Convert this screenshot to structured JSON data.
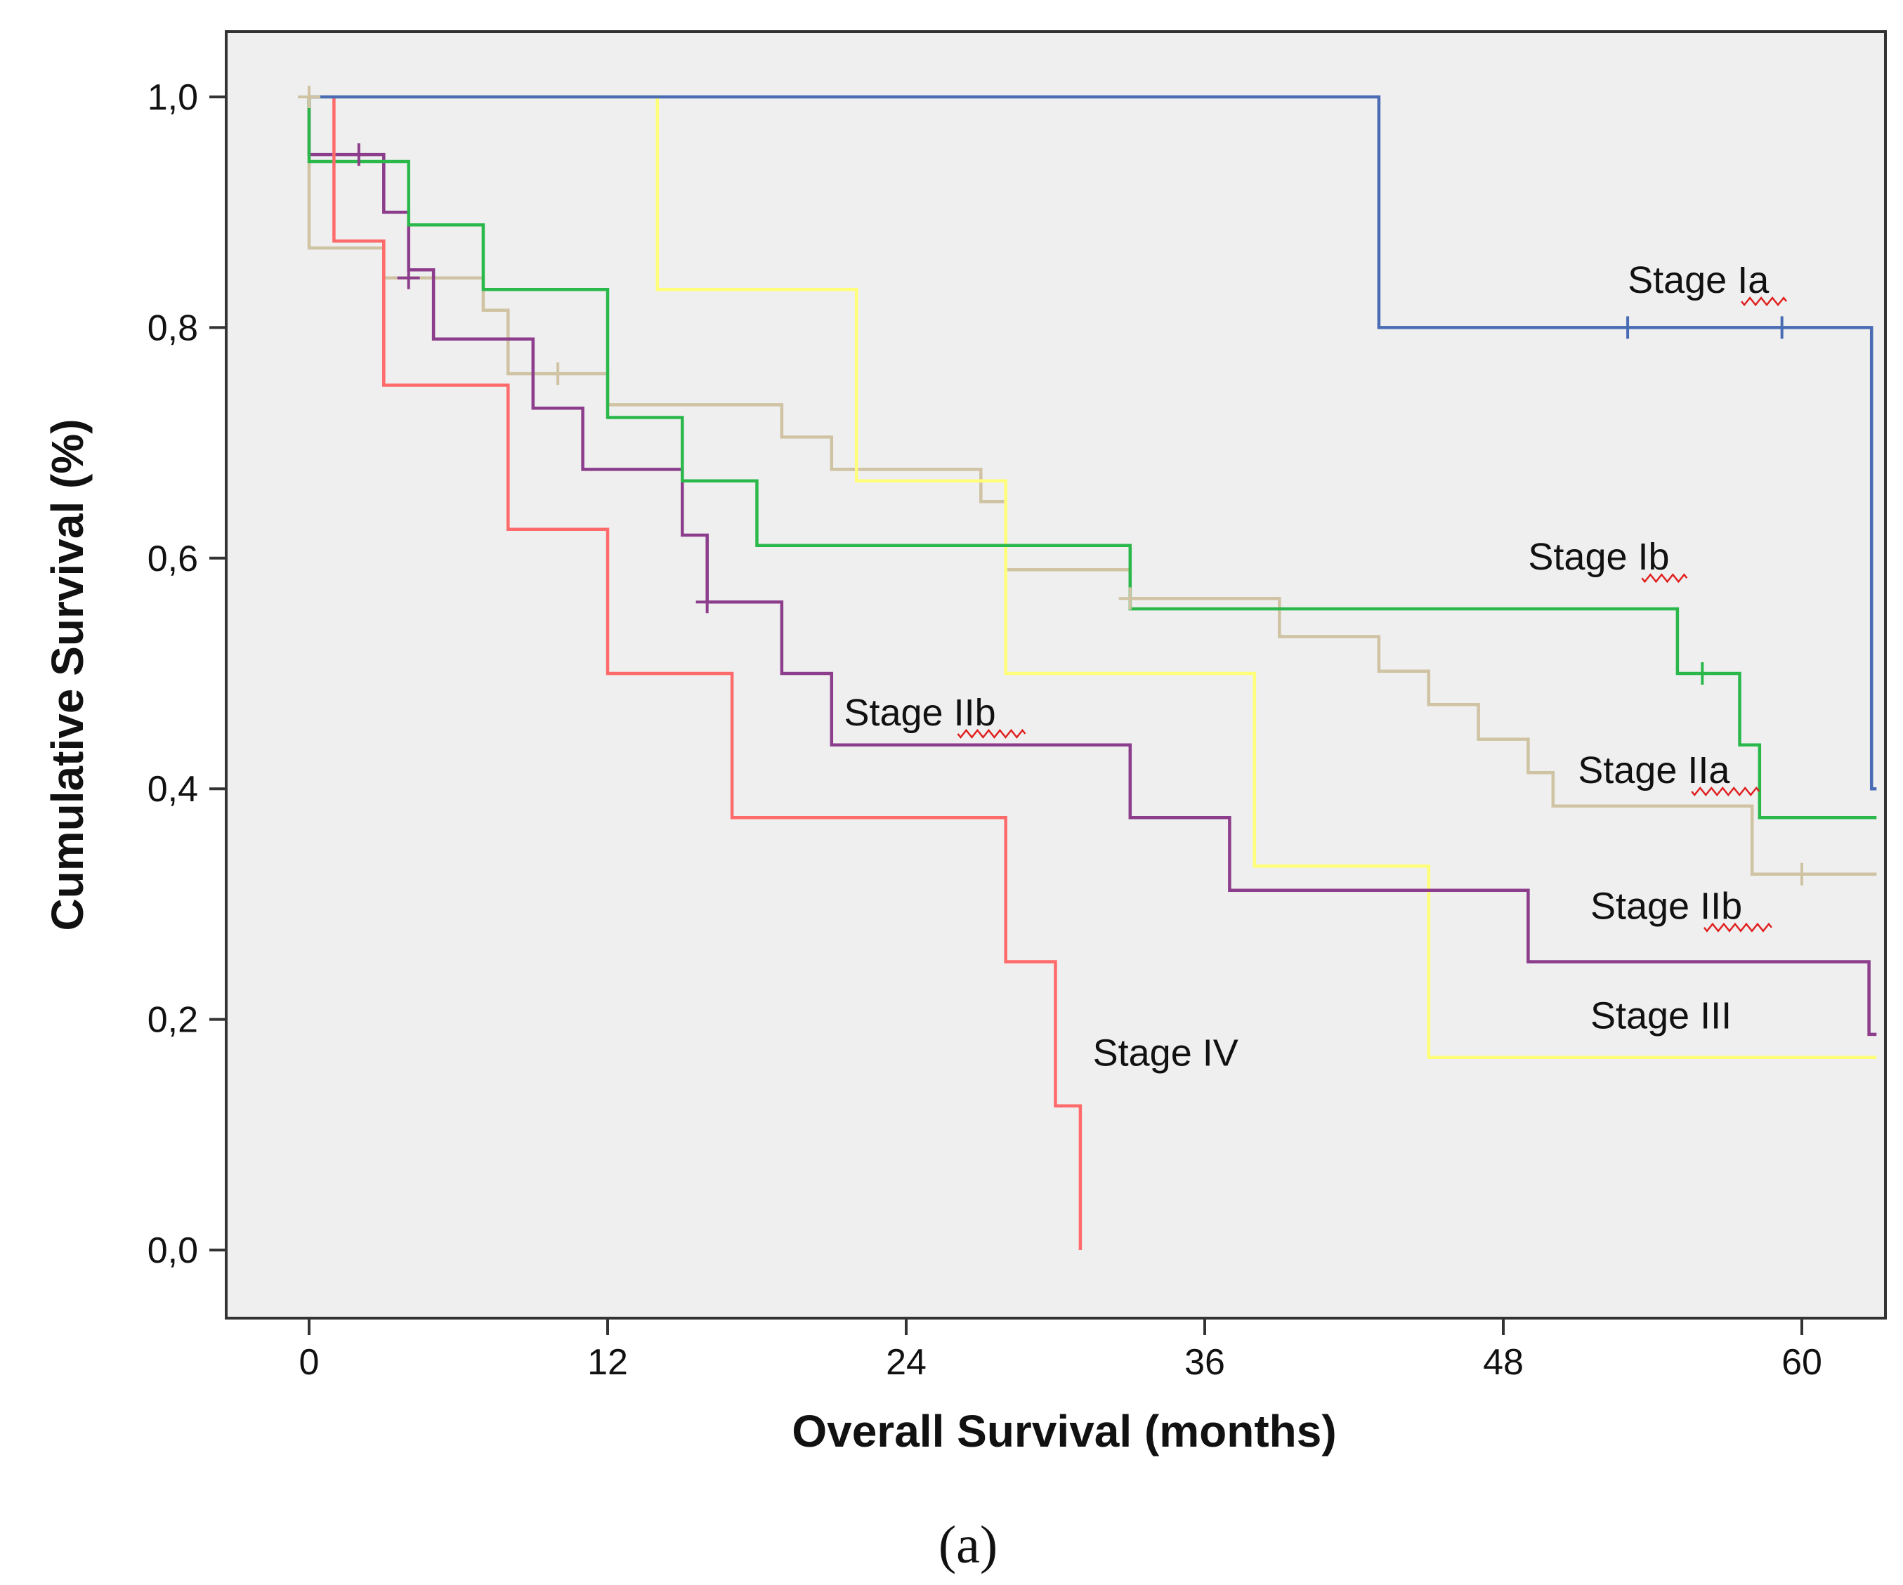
{
  "chart_data": {
    "type": "line",
    "step": true,
    "title": "",
    "xlabel": "Overall Survival (months)",
    "ylabel": "Cumulative Survival (%)",
    "xlim": [
      -4,
      63
    ],
    "ylim": [
      -0.06,
      1.06
    ],
    "xticks": [
      0,
      12,
      24,
      36,
      48,
      60
    ],
    "xtick_labels": [
      "0",
      "12",
      "24",
      "36",
      "48",
      "60"
    ],
    "yticks": [
      0.0,
      0.2,
      0.4,
      0.6,
      0.8,
      1.0
    ],
    "ytick_labels": [
      "0,0",
      "0,2",
      "0,4",
      "0,6",
      "0,8",
      "1,0"
    ],
    "grid": false,
    "legend": "inline labels",
    "background": "#efefef",
    "caption": "(a)",
    "series": [
      {
        "name": "Stage Ia",
        "label": "Stage Ia",
        "color": "#4a6cb5",
        "label_pos": [
          53,
          0.83
        ],
        "x": [
          0,
          14,
          43,
          43,
          62.8,
          62.8,
          63
        ],
        "y": [
          1.0,
          1.0,
          1.0,
          0.8,
          0.8,
          0.4,
          0.4
        ],
        "censored": [
          [
            53,
            0.8
          ],
          [
            59.2,
            0.8
          ]
        ]
      },
      {
        "name": "Stage Ib",
        "label": "Stage Ib",
        "color": "#2bb84b",
        "label_pos": [
          49,
          0.59
        ],
        "x": [
          0,
          0,
          4,
          4,
          7,
          7,
          12,
          12,
          15,
          15,
          18,
          18,
          33,
          33,
          55,
          55,
          57.5,
          57.5,
          58.3,
          58.3,
          63
        ],
        "y": [
          1.0,
          0.944,
          0.944,
          0.889,
          0.889,
          0.833,
          0.833,
          0.722,
          0.722,
          0.667,
          0.667,
          0.611,
          0.611,
          0.556,
          0.556,
          0.5,
          0.5,
          0.438,
          0.438,
          0.375,
          0.375
        ],
        "censored": [
          [
            56,
            0.5
          ]
        ]
      },
      {
        "name": "Stage IIa",
        "label": "Stage IIa",
        "color": "#cfc3a3",
        "label_pos": [
          51,
          0.405
        ],
        "x": [
          0,
          0,
          3,
          3,
          7,
          7,
          8,
          8,
          12,
          12,
          19,
          19,
          21,
          21,
          27,
          27,
          28,
          28,
          33,
          33,
          39,
          39,
          43,
          43,
          45,
          45,
          47,
          47,
          49,
          49,
          50,
          50,
          58,
          58,
          63
        ],
        "y": [
          1.0,
          0.869,
          0.869,
          0.843,
          0.843,
          0.815,
          0.815,
          0.76,
          0.76,
          0.733,
          0.733,
          0.705,
          0.705,
          0.677,
          0.677,
          0.649,
          0.649,
          0.59,
          0.59,
          0.565,
          0.565,
          0.532,
          0.532,
          0.502,
          0.502,
          0.473,
          0.473,
          0.443,
          0.443,
          0.414,
          0.414,
          0.385,
          0.385,
          0.326,
          0.326
        ],
        "censored": [
          [
            0,
            1.0
          ],
          [
            10,
            0.76
          ],
          [
            33,
            0.565
          ],
          [
            60,
            0.326
          ]
        ]
      },
      {
        "name": "Stage IIb",
        "label": "Stage IIb",
        "color": "#8c3d8c",
        "label_pos": [
          21.5,
          0.455
        ],
        "label2": "Stage IIb",
        "label2_pos": [
          51.5,
          0.287
        ],
        "x": [
          0,
          0,
          3,
          3,
          4,
          4,
          5,
          5,
          9,
          9,
          11,
          11,
          15,
          15,
          16,
          16,
          19,
          19,
          21,
          21,
          33,
          33,
          37,
          37,
          49,
          49,
          62.7,
          62.7,
          63
        ],
        "y": [
          1.0,
          0.95,
          0.95,
          0.9,
          0.9,
          0.85,
          0.85,
          0.79,
          0.79,
          0.73,
          0.73,
          0.677,
          0.677,
          0.62,
          0.62,
          0.562,
          0.562,
          0.5,
          0.5,
          0.438,
          0.438,
          0.375,
          0.375,
          0.312,
          0.312,
          0.25,
          0.25,
          0.187,
          0.187
        ],
        "censored": [
          [
            2,
            0.95
          ],
          [
            4,
            0.843
          ],
          [
            16,
            0.562
          ]
        ]
      },
      {
        "name": "Stage III",
        "label": "Stage III",
        "color": "#ffff7a",
        "label_pos": [
          51.5,
          0.192
        ],
        "x": [
          0,
          14,
          14,
          22,
          22,
          28,
          28,
          38,
          38,
          45,
          45,
          63
        ],
        "y": [
          1.0,
          1.0,
          0.833,
          0.833,
          0.667,
          0.667,
          0.5,
          0.5,
          0.333,
          0.333,
          0.167,
          0.167
        ],
        "censored": []
      },
      {
        "name": "Stage IV",
        "label": "Stage IV",
        "color": "#ff6a6a",
        "label_pos": [
          31.5,
          0.16
        ],
        "x": [
          1,
          1,
          3,
          3,
          8,
          8,
          12,
          12,
          17,
          17,
          28,
          28,
          30,
          30,
          31,
          31
        ],
        "y": [
          1.0,
          0.875,
          0.875,
          0.75,
          0.75,
          0.625,
          0.625,
          0.5,
          0.5,
          0.375,
          0.375,
          0.25,
          0.25,
          0.125,
          0.125,
          0.0
        ],
        "censored": []
      }
    ]
  }
}
